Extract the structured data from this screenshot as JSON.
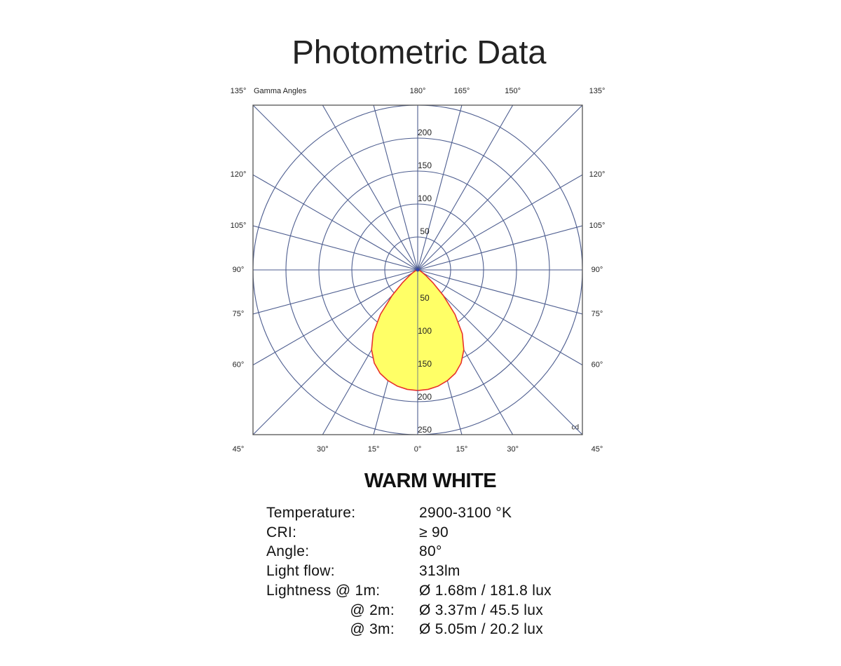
{
  "chart_data": {
    "type": "polar",
    "title": "Photometric Data",
    "axis_title": "Gamma Angles",
    "unit": "cd",
    "rlim": [
      0,
      250
    ],
    "rticks": [
      50,
      100,
      150,
      200,
      250
    ],
    "angle_ticks": [
      {
        "value": -135,
        "label": "135°"
      },
      {
        "value": -120,
        "label": "120°"
      },
      {
        "value": -105,
        "label": "105°"
      },
      {
        "value": -90,
        "label": "90°"
      },
      {
        "value": -75,
        "label": "75°"
      },
      {
        "value": -60,
        "label": "60°"
      },
      {
        "value": -45,
        "label": "45°"
      },
      {
        "value": -30,
        "label": "30°"
      },
      {
        "value": -15,
        "label": "15°"
      },
      {
        "value": 0,
        "label": "0°"
      },
      {
        "value": 15,
        "label": "15°"
      },
      {
        "value": 30,
        "label": "30°"
      },
      {
        "value": 45,
        "label": "45°"
      },
      {
        "value": 60,
        "label": "60°"
      },
      {
        "value": 75,
        "label": "75°"
      },
      {
        "value": 90,
        "label": "90°"
      },
      {
        "value": 105,
        "label": "105°"
      },
      {
        "value": 120,
        "label": "120°"
      },
      {
        "value": 135,
        "label": "135°"
      },
      {
        "value": 150,
        "label": "150°"
      },
      {
        "value": 165,
        "label": "165°"
      },
      {
        "value": 180,
        "label": "180°"
      }
    ],
    "grid": true,
    "x": [
      -90,
      -85,
      -80,
      -75,
      -70,
      -65,
      -60,
      -55,
      -50,
      -45,
      -40,
      -35,
      -30,
      -25,
      -20,
      -15,
      -10,
      -5,
      0,
      5,
      10,
      15,
      20,
      25,
      30,
      35,
      40,
      45,
      50,
      55,
      60,
      65,
      70,
      75,
      80,
      85,
      90
    ],
    "series": [
      {
        "color": "#ffff66",
        "line_color": "#e8322b",
        "values": [
          0,
          0,
          1,
          2,
          3,
          5,
          9,
          16,
          30,
          55,
          88,
          118,
          140,
          156,
          167,
          174,
          179,
          182,
          183,
          182,
          179,
          174,
          167,
          156,
          140,
          118,
          88,
          55,
          30,
          16,
          9,
          5,
          3,
          2,
          1,
          0,
          0
        ]
      }
    ]
  },
  "specs": {
    "title": "WARM WHITE",
    "rows": [
      [
        "Temperature:",
        "2900-3100 °K"
      ],
      [
        "CRI:",
        "≥ 90"
      ],
      [
        "Angle:",
        "80°"
      ],
      [
        "Light flow:",
        "313lm"
      ],
      [
        "Lightness @ 1m:",
        "Ø 1.68m / 181.8 lux"
      ],
      [
        "@ 2m:",
        "Ø 3.37m / 45.5 lux"
      ],
      [
        "@ 3m:",
        "Ø 5.05m / 20.2 lux"
      ]
    ]
  }
}
